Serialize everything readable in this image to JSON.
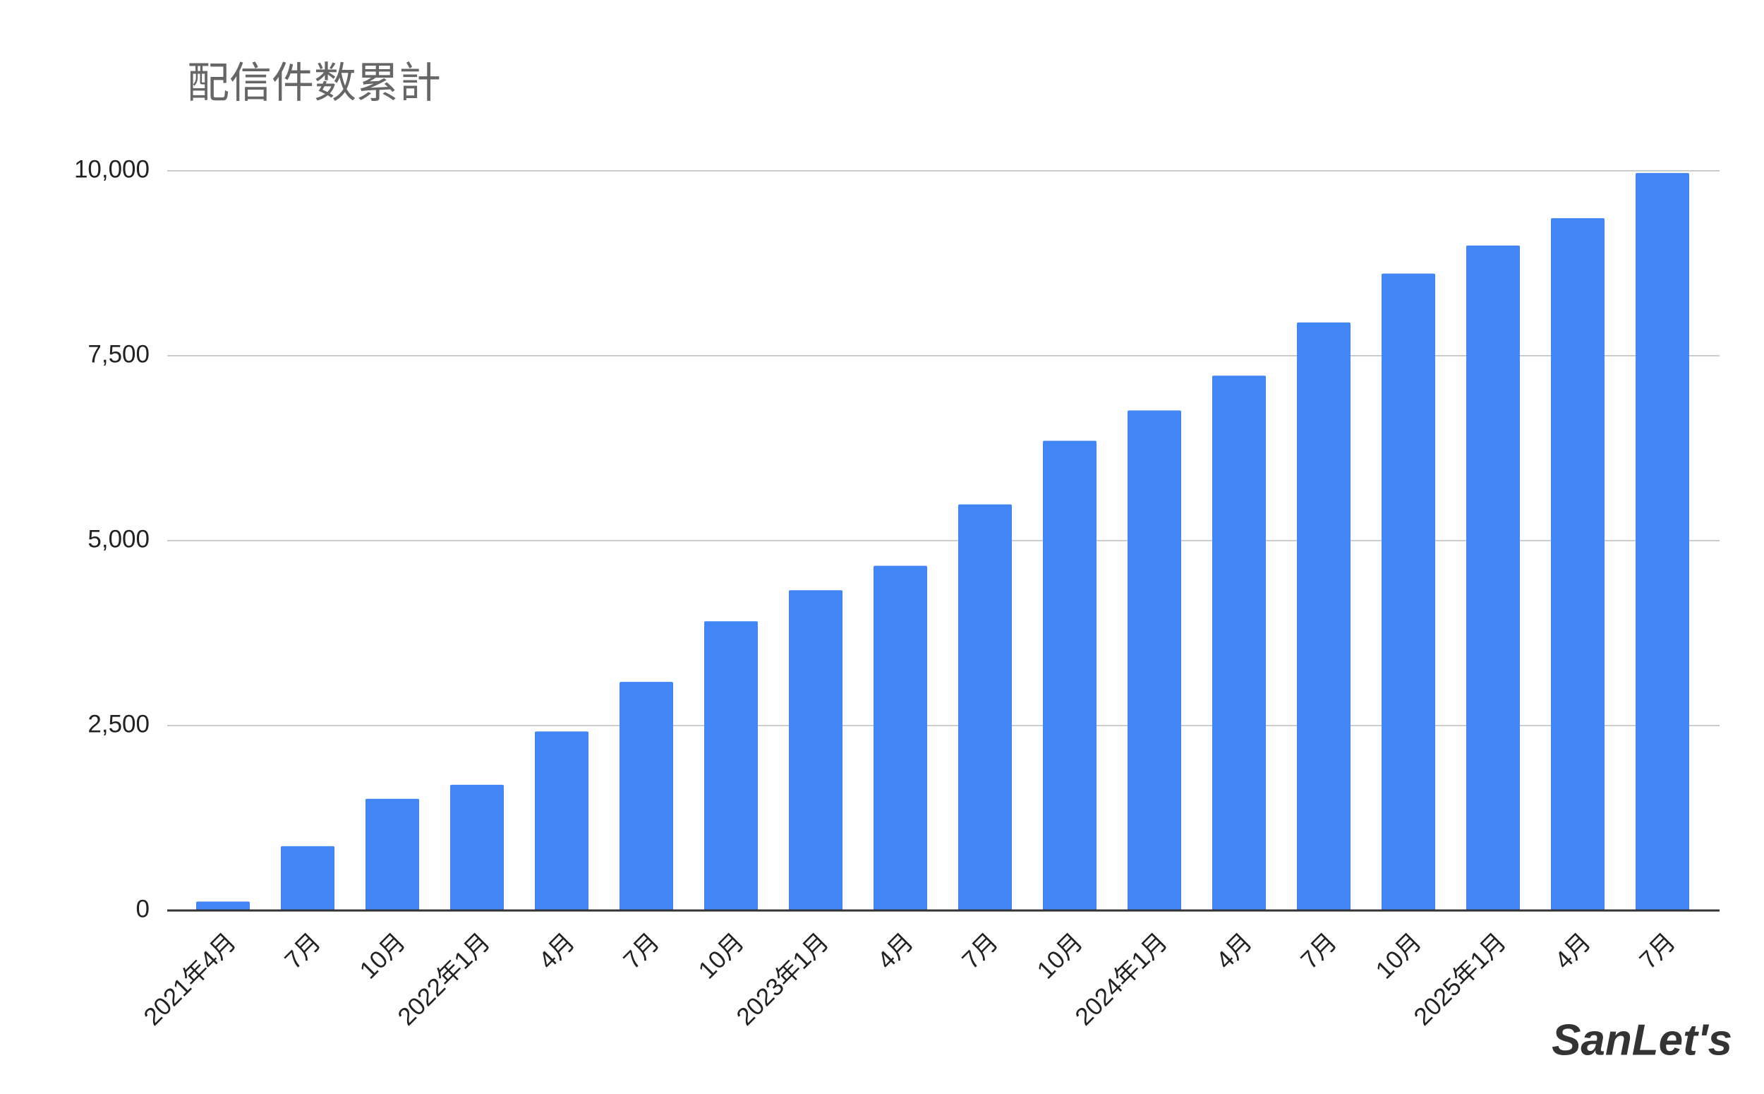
{
  "chart_data": {
    "type": "bar",
    "title": "配信件数累計",
    "categories": [
      "2021年4月",
      "7月",
      "10月",
      "2022年1月",
      "4月",
      "7月",
      "10月",
      "2023年1月",
      "4月",
      "7月",
      "10月",
      "2024年1月",
      "4月",
      "7月",
      "10月",
      "2025年1月",
      "4月",
      "7月"
    ],
    "values": [
      120,
      870,
      1510,
      1700,
      2420,
      3090,
      3910,
      4330,
      4660,
      5490,
      6350,
      6760,
      7230,
      7950,
      8610,
      8990,
      9360,
      9970
    ],
    "color": "#4285f4",
    "ylim": [
      0,
      10000
    ],
    "yticks": [
      0,
      {
        "value": 2500,
        "label": "2,500"
      },
      {
        "value": 5000,
        "label": "5,000"
      },
      {
        "value": 7500,
        "label": "7,500"
      },
      {
        "value": 10000,
        "label": "10,000"
      }
    ],
    "grid": true,
    "watermark": "SanLet's"
  }
}
